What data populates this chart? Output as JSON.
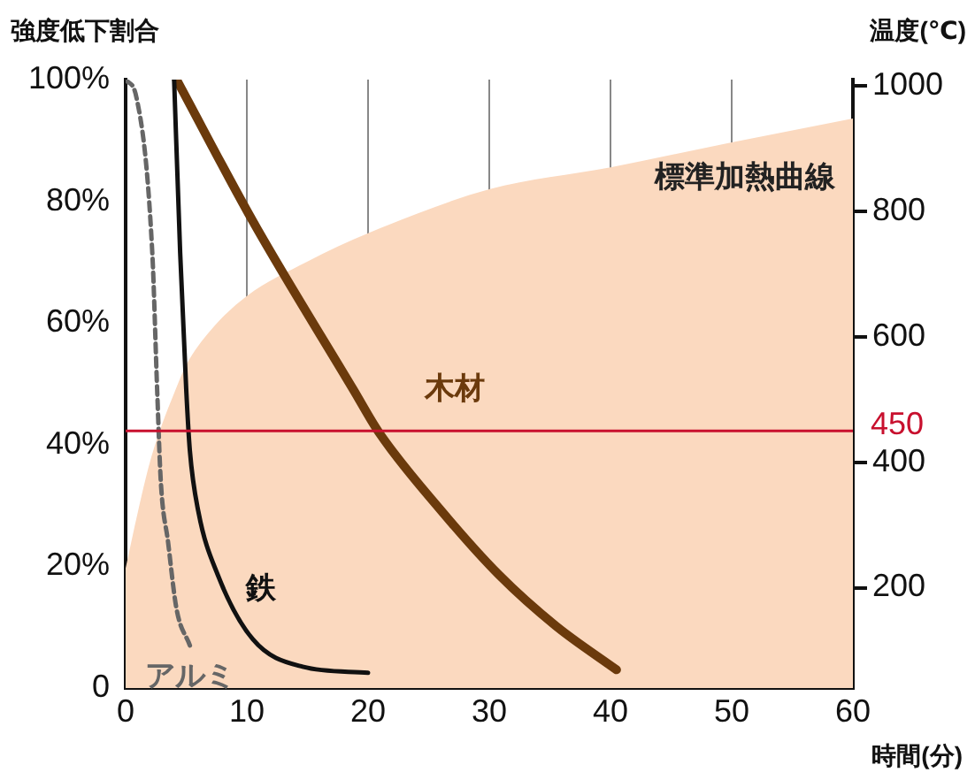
{
  "chart_data": {
    "type": "line",
    "ylabel": "強度低下割合",
    "y2label": "温度(℃)",
    "xlabel": "時間(分)",
    "xlim": [
      0,
      60
    ],
    "xticks": [
      0,
      10,
      20,
      30,
      40,
      50,
      60
    ],
    "ylim": [
      0,
      100
    ],
    "yticks": [
      {
        "value": 0,
        "label": "0"
      },
      {
        "value": 20,
        "label": "20%"
      },
      {
        "value": 40,
        "label": "40%"
      },
      {
        "value": 60,
        "label": "60%"
      },
      {
        "value": 80,
        "label": "80%"
      },
      {
        "value": 100,
        "label": "100%"
      }
    ],
    "y2lim": [
      40,
      1010
    ],
    "y2ticks": [
      200,
      400,
      600,
      800,
      1000
    ],
    "grid": "x",
    "legend": false,
    "marker": "none",
    "series": [
      {
        "name": "標準加熱曲線",
        "type": "area",
        "axis": "y2",
        "color": "#fbd9bf",
        "x": [
          0,
          1,
          2,
          3,
          4,
          5,
          7,
          10,
          15,
          20,
          30,
          40,
          50,
          60
        ],
        "values": [
          231,
          320,
          400,
          460,
          510,
          555,
          610,
          665,
          720,
          765,
          835,
          870,
          910,
          948
        ]
      },
      {
        "name": "アルミ",
        "line_style": "dashed",
        "color": "#666666",
        "x": [
          0,
          0.9,
          2.2,
          2.6,
          2.9,
          3.5,
          4.2,
          5.3
        ],
        "values": [
          100,
          97,
          71.5,
          49,
          34,
          24,
          13,
          7
        ]
      },
      {
        "name": "鉄",
        "line_style": "solid",
        "color": "#111111",
        "x": [
          4,
          4.5,
          5,
          5.3,
          6,
          7.6,
          10.5,
          14.6,
          20
        ],
        "values": [
          100,
          71.5,
          49,
          39,
          29,
          18.6,
          8,
          3.5,
          2.5
        ]
      },
      {
        "name": "木材",
        "line_style": "solid",
        "color": "#6b3a0c",
        "x": [
          4.2,
          10.5,
          18.8,
          20.9,
          26.1,
          30.8,
          35.5,
          40.5
        ],
        "values": [
          100,
          76.7,
          49,
          42,
          29,
          18.6,
          10.2,
          3
        ]
      }
    ],
    "ref_lines": [
      {
        "axis": "y2",
        "value": 450,
        "label": "450",
        "color": "#c8102e"
      }
    ]
  }
}
